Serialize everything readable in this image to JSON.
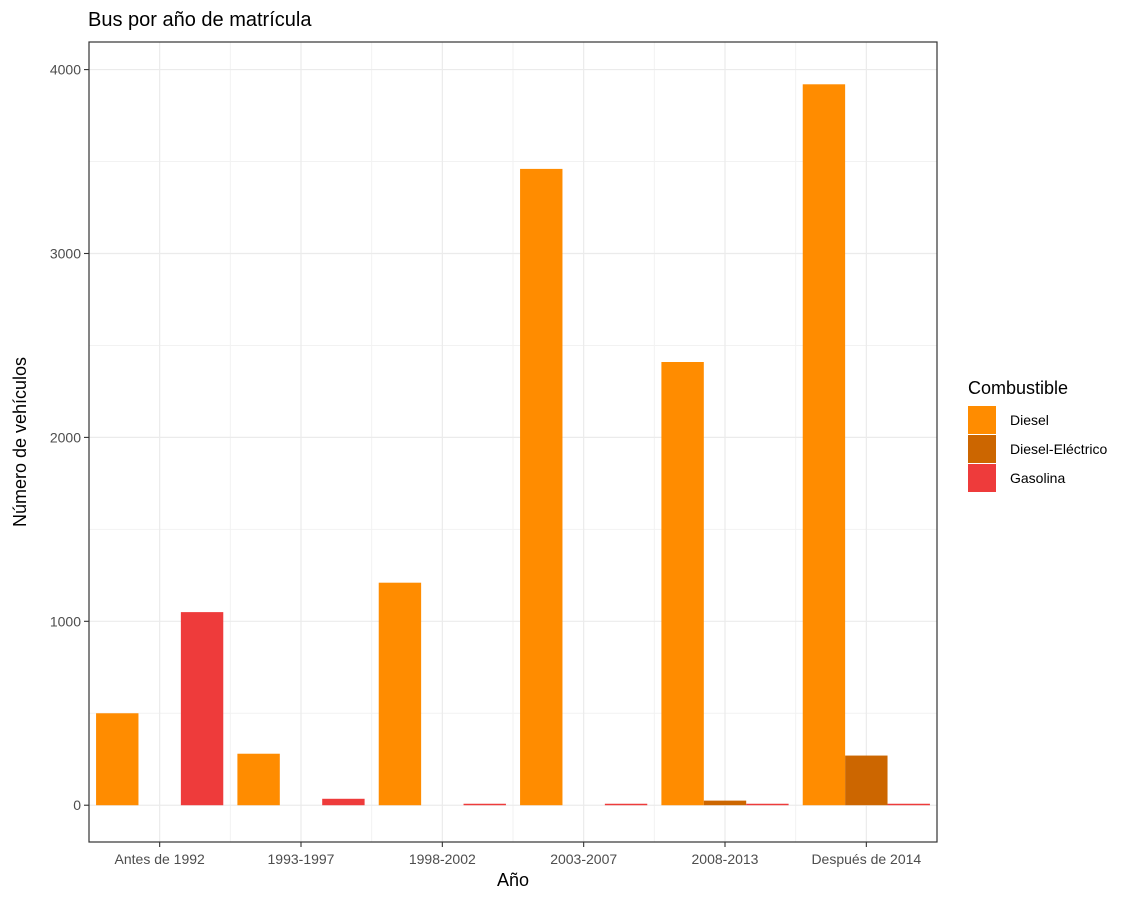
{
  "chart_data": {
    "type": "bar",
    "title": "Bus por año de matrícula",
    "xlabel": "Año",
    "ylabel": "Número de vehículos",
    "categories": [
      "Antes de 1992",
      "1993-1997",
      "1998-2002",
      "2003-2007",
      "2008-2013",
      "Después de 2014"
    ],
    "series": [
      {
        "name": "Diesel",
        "color": "#FF8C00",
        "values": [
          500,
          280,
          1210,
          3460,
          2410,
          3920
        ]
      },
      {
        "name": "Diesel-Eléctrico",
        "color": "#CC6600",
        "values": [
          0,
          0,
          0,
          0,
          25,
          270
        ]
      },
      {
        "name": "Gasolina",
        "color": "#EE3B3B",
        "values": [
          1050,
          35,
          8,
          8,
          8,
          8
        ]
      }
    ],
    "ylim": [
      -200,
      4150
    ],
    "yticks": [
      0,
      1000,
      2000,
      3000,
      4000
    ],
    "grid": true,
    "legend": {
      "title": "Combustible",
      "position": "right"
    }
  }
}
